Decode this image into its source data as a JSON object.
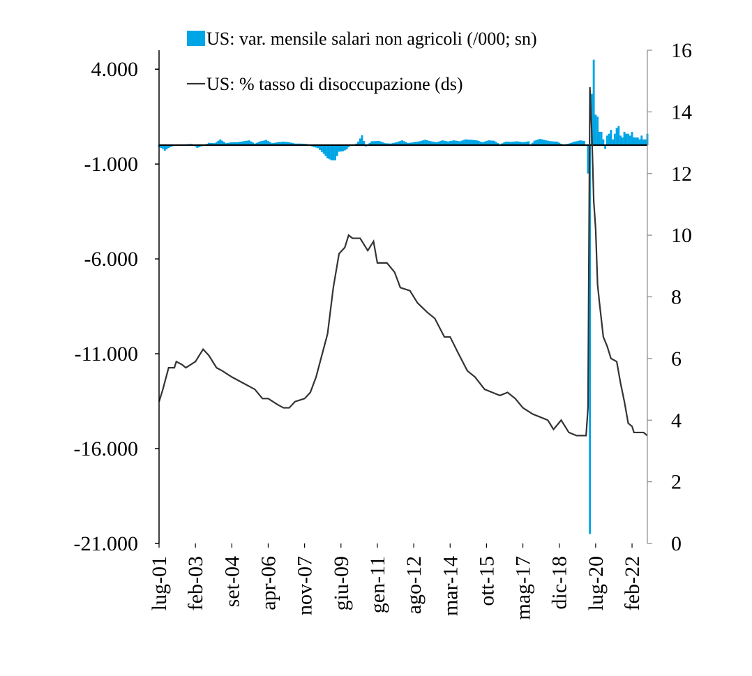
{
  "chart_data": {
    "type": "bar+line",
    "title": "",
    "left_axis": {
      "ylim": [
        -21000,
        5000
      ],
      "tick_values": [
        4000,
        -1000,
        -6000,
        -11000,
        -16000,
        -21000
      ],
      "tick_labels": [
        "4.000",
        "-1.000",
        "-6.000",
        "-11.000",
        "-16.000",
        "-21.000"
      ]
    },
    "right_axis": {
      "ylim": [
        0,
        16
      ],
      "tick_values": [
        16,
        14,
        12,
        10,
        8,
        6,
        4,
        2,
        0
      ],
      "tick_labels": [
        "16",
        "14",
        "12",
        "10",
        "8",
        "6",
        "4",
        "2",
        "0"
      ]
    },
    "x_axis": {
      "start": "2001-07",
      "end": "2022-10",
      "tick_labels": [
        "lug-01",
        "feb-03",
        "set-04",
        "apr-06",
        "nov-07",
        "giu-09",
        "gen-11",
        "ago-12",
        "mar-14",
        "ott-15",
        "mag-17",
        "dic-18",
        "lug-20",
        "feb-22"
      ],
      "tick_months": [
        "2001-07",
        "2003-02",
        "2004-09",
        "2006-04",
        "2007-11",
        "2009-06",
        "2011-01",
        "2012-08",
        "2014-03",
        "2015-10",
        "2017-05",
        "2018-12",
        "2020-07",
        "2022-02"
      ]
    },
    "series": [
      {
        "name": "US: var. mensile salari non agricoli (/000; sn)",
        "kind": "bar",
        "axis": "left",
        "color": "#00a5e6",
        "points": [
          {
            "date": "2001-07",
            "value": -100
          },
          {
            "date": "2001-09",
            "value": -200
          },
          {
            "date": "2001-10",
            "value": -300
          },
          {
            "date": "2001-12",
            "value": -150
          },
          {
            "date": "2002-03",
            "value": -30
          },
          {
            "date": "2002-06",
            "value": 30
          },
          {
            "date": "2002-09",
            "value": 40
          },
          {
            "date": "2002-12",
            "value": 60
          },
          {
            "date": "2003-03",
            "value": -150
          },
          {
            "date": "2003-06",
            "value": -40
          },
          {
            "date": "2003-09",
            "value": 120
          },
          {
            "date": "2003-12",
            "value": 100
          },
          {
            "date": "2004-03",
            "value": 300
          },
          {
            "date": "2004-06",
            "value": 100
          },
          {
            "date": "2004-09",
            "value": 150
          },
          {
            "date": "2004-12",
            "value": 150
          },
          {
            "date": "2005-03",
            "value": 200
          },
          {
            "date": "2005-06",
            "value": 250
          },
          {
            "date": "2005-09",
            "value": 80
          },
          {
            "date": "2005-12",
            "value": 200
          },
          {
            "date": "2006-03",
            "value": 270
          },
          {
            "date": "2006-06",
            "value": 100
          },
          {
            "date": "2006-09",
            "value": 150
          },
          {
            "date": "2006-12",
            "value": 180
          },
          {
            "date": "2007-03",
            "value": 150
          },
          {
            "date": "2007-06",
            "value": 80
          },
          {
            "date": "2007-09",
            "value": 80
          },
          {
            "date": "2007-12",
            "value": 60
          },
          {
            "date": "2008-03",
            "value": -80
          },
          {
            "date": "2008-06",
            "value": -160
          },
          {
            "date": "2008-09",
            "value": -460
          },
          {
            "date": "2008-11",
            "value": -700
          },
          {
            "date": "2009-01",
            "value": -800
          },
          {
            "date": "2009-03",
            "value": -800
          },
          {
            "date": "2009-05",
            "value": -350
          },
          {
            "date": "2009-07",
            "value": -330
          },
          {
            "date": "2009-09",
            "value": -230
          },
          {
            "date": "2009-11",
            "value": -10
          },
          {
            "date": "2010-01",
            "value": -20
          },
          {
            "date": "2010-03",
            "value": 180
          },
          {
            "date": "2010-05",
            "value": 520
          },
          {
            "date": "2010-07",
            "value": -80
          },
          {
            "date": "2010-10",
            "value": 200
          },
          {
            "date": "2011-02",
            "value": 220
          },
          {
            "date": "2011-05",
            "value": 100
          },
          {
            "date": "2011-08",
            "value": 80
          },
          {
            "date": "2011-11",
            "value": 150
          },
          {
            "date": "2012-02",
            "value": 250
          },
          {
            "date": "2012-05",
            "value": 110
          },
          {
            "date": "2012-08",
            "value": 150
          },
          {
            "date": "2012-11",
            "value": 200
          },
          {
            "date": "2013-02",
            "value": 280
          },
          {
            "date": "2013-05",
            "value": 200
          },
          {
            "date": "2013-08",
            "value": 150
          },
          {
            "date": "2013-11",
            "value": 250
          },
          {
            "date": "2014-02",
            "value": 190
          },
          {
            "date": "2014-05",
            "value": 250
          },
          {
            "date": "2014-08",
            "value": 200
          },
          {
            "date": "2014-11",
            "value": 300
          },
          {
            "date": "2015-02",
            "value": 280
          },
          {
            "date": "2015-05",
            "value": 250
          },
          {
            "date": "2015-08",
            "value": 150
          },
          {
            "date": "2015-11",
            "value": 250
          },
          {
            "date": "2016-02",
            "value": 230
          },
          {
            "date": "2016-05",
            "value": 40
          },
          {
            "date": "2016-08",
            "value": 180
          },
          {
            "date": "2016-11",
            "value": 170
          },
          {
            "date": "2017-02",
            "value": 200
          },
          {
            "date": "2017-05",
            "value": 150
          },
          {
            "date": "2017-08",
            "value": 200
          },
          {
            "date": "2017-09",
            "value": 20
          },
          {
            "date": "2017-11",
            "value": 230
          },
          {
            "date": "2018-02",
            "value": 330
          },
          {
            "date": "2018-05",
            "value": 250
          },
          {
            "date": "2018-08",
            "value": 200
          },
          {
            "date": "2018-11",
            "value": 180
          },
          {
            "date": "2019-02",
            "value": 20
          },
          {
            "date": "2019-05",
            "value": 80
          },
          {
            "date": "2019-08",
            "value": 180
          },
          {
            "date": "2019-11",
            "value": 250
          },
          {
            "date": "2020-01",
            "value": 220
          },
          {
            "date": "2020-03",
            "value": -1500
          },
          {
            "date": "2020-04",
            "value": -20500
          },
          {
            "date": "2020-05",
            "value": 2700
          },
          {
            "date": "2020-06",
            "value": 4500
          },
          {
            "date": "2020-07",
            "value": 1600
          },
          {
            "date": "2020-08",
            "value": 1500
          },
          {
            "date": "2020-09",
            "value": 700
          },
          {
            "date": "2020-10",
            "value": 700
          },
          {
            "date": "2020-11",
            "value": 300
          },
          {
            "date": "2020-12",
            "value": -200
          },
          {
            "date": "2021-01",
            "value": 500
          },
          {
            "date": "2021-02",
            "value": 600
          },
          {
            "date": "2021-03",
            "value": 800
          },
          {
            "date": "2021-04",
            "value": 300
          },
          {
            "date": "2021-05",
            "value": 600
          },
          {
            "date": "2021-06",
            "value": 900
          },
          {
            "date": "2021-07",
            "value": 1000
          },
          {
            "date": "2021-08",
            "value": 500
          },
          {
            "date": "2021-09",
            "value": 400
          },
          {
            "date": "2021-10",
            "value": 700
          },
          {
            "date": "2021-11",
            "value": 600
          },
          {
            "date": "2021-12",
            "value": 600
          },
          {
            "date": "2022-01",
            "value": 500
          },
          {
            "date": "2022-02",
            "value": 700
          },
          {
            "date": "2022-03",
            "value": 400
          },
          {
            "date": "2022-04",
            "value": 400
          },
          {
            "date": "2022-05",
            "value": 400
          },
          {
            "date": "2022-06",
            "value": 300
          },
          {
            "date": "2022-07",
            "value": 500
          },
          {
            "date": "2022-08",
            "value": 300
          },
          {
            "date": "2022-09",
            "value": 300
          },
          {
            "date": "2022-10",
            "value": 600
          }
        ]
      },
      {
        "name": "US: % tasso di disoccupazione (ds)",
        "kind": "line",
        "axis": "right",
        "color": "#333333",
        "points": [
          {
            "date": "2001-07",
            "value": 4.6
          },
          {
            "date": "2001-09",
            "value": 5.0
          },
          {
            "date": "2001-12",
            "value": 5.7
          },
          {
            "date": "2002-03",
            "value": 5.7
          },
          {
            "date": "2002-04",
            "value": 5.9
          },
          {
            "date": "2002-07",
            "value": 5.8
          },
          {
            "date": "2002-09",
            "value": 5.7
          },
          {
            "date": "2003-02",
            "value": 5.9
          },
          {
            "date": "2003-06",
            "value": 6.3
          },
          {
            "date": "2003-09",
            "value": 6.1
          },
          {
            "date": "2004-01",
            "value": 5.7
          },
          {
            "date": "2004-04",
            "value": 5.6
          },
          {
            "date": "2004-09",
            "value": 5.4
          },
          {
            "date": "2005-03",
            "value": 5.2
          },
          {
            "date": "2005-09",
            "value": 5.0
          },
          {
            "date": "2006-01",
            "value": 4.7
          },
          {
            "date": "2006-04",
            "value": 4.7
          },
          {
            "date": "2006-09",
            "value": 4.5
          },
          {
            "date": "2006-12",
            "value": 4.4
          },
          {
            "date": "2007-03",
            "value": 4.4
          },
          {
            "date": "2007-06",
            "value": 4.6
          },
          {
            "date": "2007-11",
            "value": 4.7
          },
          {
            "date": "2008-02",
            "value": 4.9
          },
          {
            "date": "2008-05",
            "value": 5.4
          },
          {
            "date": "2008-08",
            "value": 6.1
          },
          {
            "date": "2008-11",
            "value": 6.8
          },
          {
            "date": "2009-02",
            "value": 8.3
          },
          {
            "date": "2009-05",
            "value": 9.4
          },
          {
            "date": "2009-08",
            "value": 9.6
          },
          {
            "date": "2009-10",
            "value": 10.0
          },
          {
            "date": "2009-12",
            "value": 9.9
          },
          {
            "date": "2010-04",
            "value": 9.9
          },
          {
            "date": "2010-08",
            "value": 9.5
          },
          {
            "date": "2010-11",
            "value": 9.8
          },
          {
            "date": "2011-01",
            "value": 9.1
          },
          {
            "date": "2011-06",
            "value": 9.1
          },
          {
            "date": "2011-10",
            "value": 8.8
          },
          {
            "date": "2012-01",
            "value": 8.3
          },
          {
            "date": "2012-06",
            "value": 8.2
          },
          {
            "date": "2012-10",
            "value": 7.8
          },
          {
            "date": "2013-03",
            "value": 7.5
          },
          {
            "date": "2013-07",
            "value": 7.3
          },
          {
            "date": "2013-12",
            "value": 6.7
          },
          {
            "date": "2014-03",
            "value": 6.7
          },
          {
            "date": "2014-07",
            "value": 6.2
          },
          {
            "date": "2014-12",
            "value": 5.6
          },
          {
            "date": "2015-04",
            "value": 5.4
          },
          {
            "date": "2015-09",
            "value": 5.0
          },
          {
            "date": "2016-01",
            "value": 4.9
          },
          {
            "date": "2016-05",
            "value": 4.8
          },
          {
            "date": "2016-09",
            "value": 4.9
          },
          {
            "date": "2017-01",
            "value": 4.7
          },
          {
            "date": "2017-05",
            "value": 4.4
          },
          {
            "date": "2017-10",
            "value": 4.2
          },
          {
            "date": "2018-02",
            "value": 4.1
          },
          {
            "date": "2018-06",
            "value": 4.0
          },
          {
            "date": "2018-09",
            "value": 3.7
          },
          {
            "date": "2019-01",
            "value": 4.0
          },
          {
            "date": "2019-05",
            "value": 3.6
          },
          {
            "date": "2019-09",
            "value": 3.5
          },
          {
            "date": "2020-02",
            "value": 3.5
          },
          {
            "date": "2020-03",
            "value": 4.4
          },
          {
            "date": "2020-04",
            "value": 14.8
          },
          {
            "date": "2020-05",
            "value": 13.3
          },
          {
            "date": "2020-06",
            "value": 11.1
          },
          {
            "date": "2020-07",
            "value": 10.2
          },
          {
            "date": "2020-08",
            "value": 8.4
          },
          {
            "date": "2020-09",
            "value": 7.8
          },
          {
            "date": "2020-11",
            "value": 6.7
          },
          {
            "date": "2021-01",
            "value": 6.4
          },
          {
            "date": "2021-03",
            "value": 6.0
          },
          {
            "date": "2021-06",
            "value": 5.9
          },
          {
            "date": "2021-08",
            "value": 5.2
          },
          {
            "date": "2021-10",
            "value": 4.6
          },
          {
            "date": "2021-12",
            "value": 3.9
          },
          {
            "date": "2022-02",
            "value": 3.8
          },
          {
            "date": "2022-03",
            "value": 3.6
          },
          {
            "date": "2022-08",
            "value": 3.6
          },
          {
            "date": "2022-10",
            "value": 3.5
          }
        ]
      }
    ]
  }
}
